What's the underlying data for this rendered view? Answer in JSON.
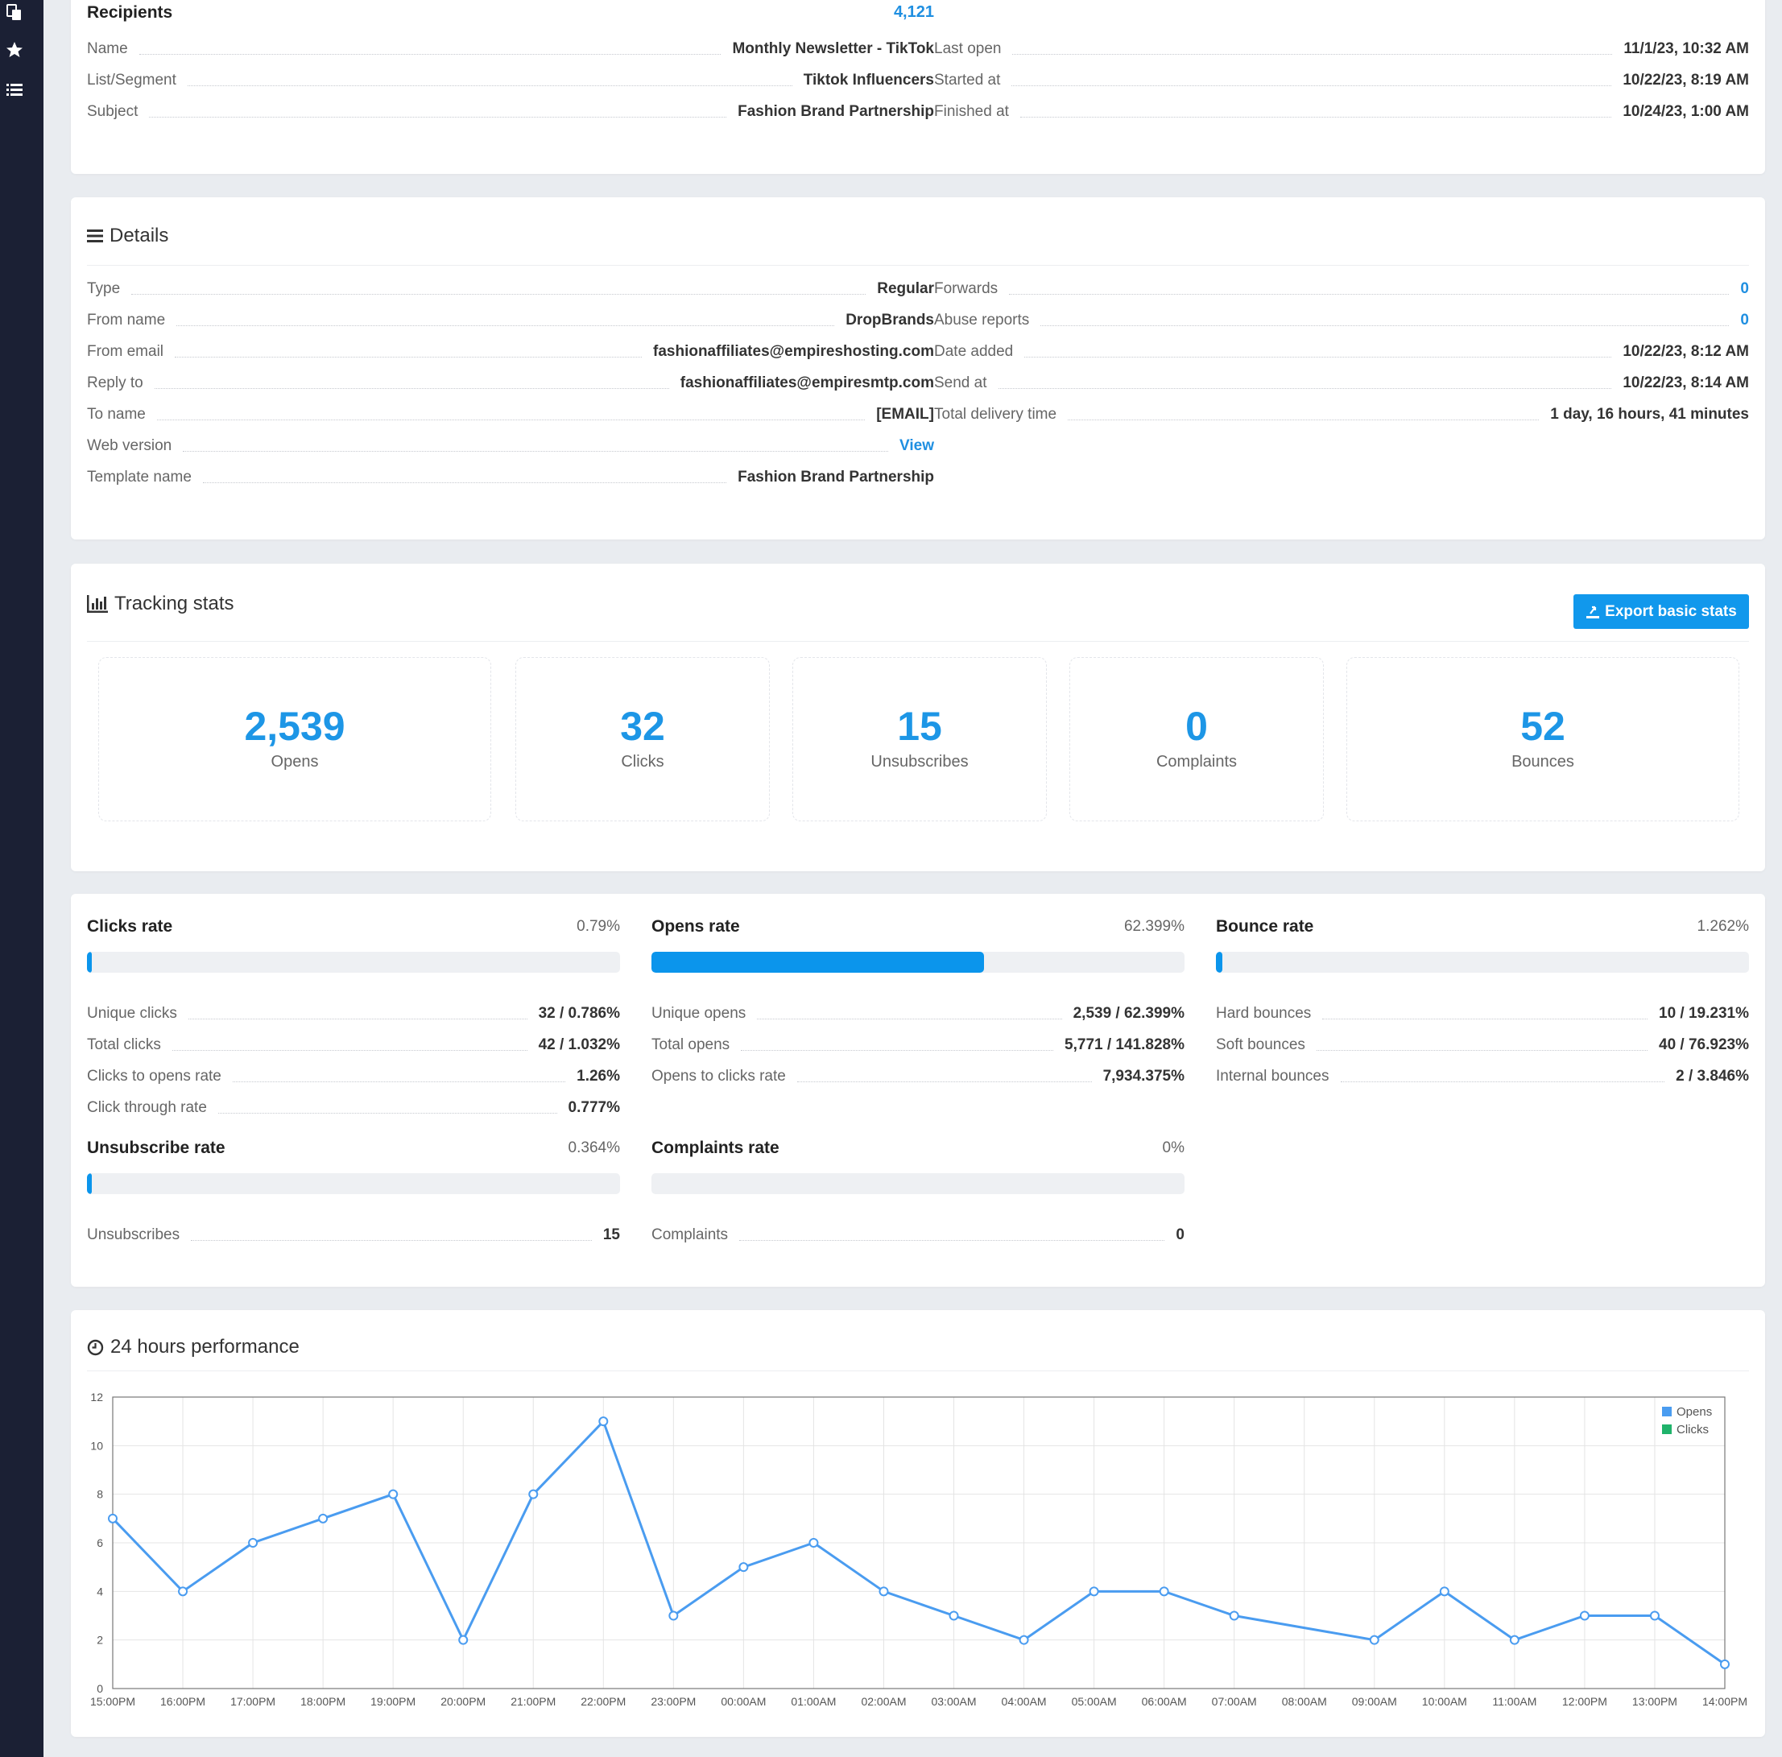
{
  "sidebar": {
    "icons": [
      "copy-icon",
      "star-icon",
      "list-icon"
    ]
  },
  "recipients": {
    "title": "Recipients",
    "count": "4,121",
    "left": [
      {
        "label": "Name",
        "value": "Monthly Newsletter - TikTok"
      },
      {
        "label": "List/Segment",
        "value": "Tiktok Influencers"
      },
      {
        "label": "Subject",
        "value": "Fashion Brand Partnership"
      }
    ],
    "right": [
      {
        "label": "Last open",
        "value": "11/1/23, 10:32 AM"
      },
      {
        "label": "Started at",
        "value": "10/22/23, 8:19 AM"
      },
      {
        "label": "Finished at",
        "value": "10/24/23, 1:00 AM"
      }
    ]
  },
  "details": {
    "title": "Details",
    "left": [
      {
        "label": "Type",
        "value": "Regular"
      },
      {
        "label": "From name",
        "value": "DropBrands"
      },
      {
        "label": "From email",
        "value": "fashionaffiliates@empireshosting.com"
      },
      {
        "label": "Reply to",
        "value": "fashionaffiliates@empiresmtp.com"
      },
      {
        "label": "To name",
        "value": "[EMAIL]"
      },
      {
        "label": "Web version",
        "value": "View"
      },
      {
        "label": "Template name",
        "value": "Fashion Brand Partnership"
      }
    ],
    "right": [
      {
        "label": "Forwards",
        "value": "0"
      },
      {
        "label": "Abuse reports",
        "value": "0"
      },
      {
        "label": "Date added",
        "value": "10/22/23, 8:12 AM"
      },
      {
        "label": "Send at",
        "value": "10/22/23, 8:14 AM"
      },
      {
        "label": "Total delivery time",
        "value": "1 day, 16 hours, 41 minutes"
      }
    ]
  },
  "tracking": {
    "title": "Tracking stats",
    "export_label": "Export basic stats",
    "stats": [
      {
        "number": "2,539",
        "label": "Opens"
      },
      {
        "number": "32",
        "label": "Clicks"
      },
      {
        "number": "15",
        "label": "Unsubscribes"
      },
      {
        "number": "0",
        "label": "Complaints"
      },
      {
        "number": "52",
        "label": "Bounces"
      }
    ]
  },
  "rates": {
    "clicks": {
      "title": "Clicks rate",
      "percent": "0.79%",
      "fill": 0.0079,
      "rows": [
        {
          "label": "Unique clicks",
          "value": "32 / 0.786%"
        },
        {
          "label": "Total clicks",
          "value": "42 / 1.032%"
        },
        {
          "label": "Clicks to opens rate",
          "value": "1.26%"
        },
        {
          "label": "Click through rate",
          "value": "0.777%"
        }
      ]
    },
    "opens": {
      "title": "Opens rate",
      "percent": "62.399%",
      "fill": 0.62399,
      "rows": [
        {
          "label": "Unique opens",
          "value": "2,539 / 62.399%"
        },
        {
          "label": "Total opens",
          "value": "5,771 / 141.828%"
        },
        {
          "label": "Opens to clicks rate",
          "value": "7,934.375%"
        }
      ]
    },
    "bounce": {
      "title": "Bounce rate",
      "percent": "1.262%",
      "fill": 0.01262,
      "rows": [
        {
          "label": "Hard bounces",
          "value": "10 / 19.231%"
        },
        {
          "label": "Soft bounces",
          "value": "40 / 76.923%"
        },
        {
          "label": "Internal bounces",
          "value": "2 / 3.846%"
        }
      ]
    },
    "unsubscribe": {
      "title": "Unsubscribe rate",
      "percent": "0.364%",
      "fill": 0.00364,
      "rows": [
        {
          "label": "Unsubscribes",
          "value": "15"
        }
      ]
    },
    "complaints": {
      "title": "Complaints rate",
      "percent": "0%",
      "fill": 0,
      "rows": [
        {
          "label": "Complaints",
          "value": "0"
        }
      ]
    }
  },
  "performance": {
    "title": "24 hours performance"
  },
  "chart_data": {
    "type": "line",
    "title": "",
    "xlabel": "",
    "ylabel": "",
    "ylim": [
      0,
      12
    ],
    "yticks": [
      0,
      2,
      4,
      6,
      8,
      10,
      12
    ],
    "grid": true,
    "legend": "top-right",
    "categories": [
      "15:00PM",
      "16:00PM",
      "17:00PM",
      "18:00PM",
      "19:00PM",
      "20:00PM",
      "21:00PM",
      "22:00PM",
      "23:00PM",
      "00:00AM",
      "01:00AM",
      "02:00AM",
      "03:00AM",
      "04:00AM",
      "05:00AM",
      "06:00AM",
      "07:00AM",
      "08:00AM",
      "09:00AM",
      "10:00AM",
      "11:00AM",
      "12:00PM",
      "13:00PM",
      "14:00PM"
    ],
    "series": [
      {
        "name": "Opens",
        "color": "#4a9cf0",
        "values": [
          7,
          4,
          6,
          7,
          8,
          2,
          8,
          11,
          3,
          5,
          6,
          4,
          3,
          2,
          4,
          4,
          3,
          null,
          2,
          4,
          2,
          3,
          3,
          1
        ]
      },
      {
        "name": "Clicks",
        "color": "#20b36b",
        "values": [
          null,
          null,
          null,
          null,
          null,
          null,
          null,
          null,
          null,
          null,
          null,
          null,
          null,
          null,
          null,
          null,
          null,
          null,
          null,
          null,
          null,
          null,
          null,
          null
        ]
      }
    ]
  }
}
